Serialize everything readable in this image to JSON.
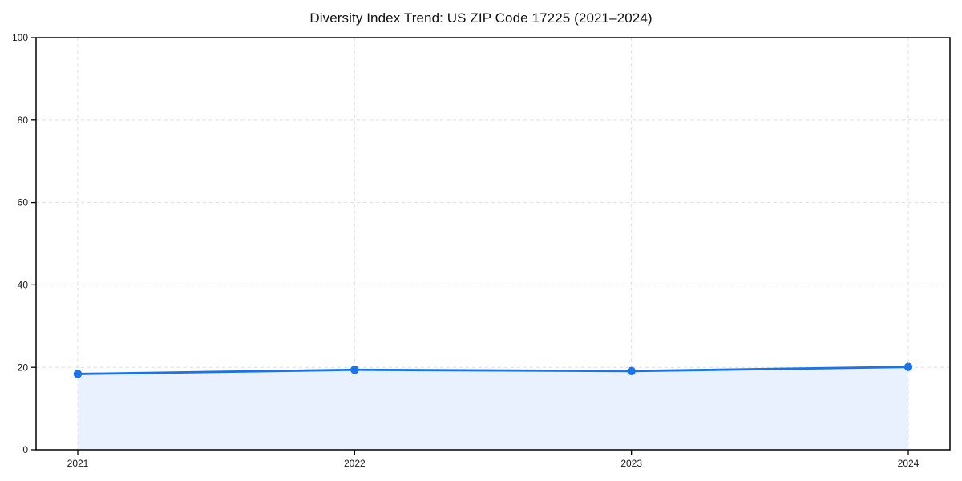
{
  "page": {
    "kind": "chart-figure"
  },
  "chart_data": {
    "type": "line",
    "title": "Diversity Index Trend: US ZIP Code 17225 (2021–2024)",
    "xlabel": "",
    "ylabel": "",
    "x": [
      2021,
      2022,
      2023,
      2024
    ],
    "x_tick_labels": [
      "2021",
      "2022",
      "2023",
      "2024"
    ],
    "series": [
      {
        "name": "Diversity Index",
        "values": [
          18.4,
          19.4,
          19.1,
          20.1
        ]
      }
    ],
    "ylim": [
      0,
      100
    ],
    "yticks": [
      0,
      20,
      40,
      60,
      80,
      100
    ],
    "grid": true,
    "grid_style": "dashed",
    "area_fill": true,
    "legend_position": "none",
    "colors": {
      "line": "#1a73e8",
      "marker": "#1a73e8",
      "area": "#e8f1fd",
      "grid": "#dedede",
      "axis": "#000000",
      "tick_text": "#1a1a1a",
      "background": "#ffffff"
    }
  }
}
